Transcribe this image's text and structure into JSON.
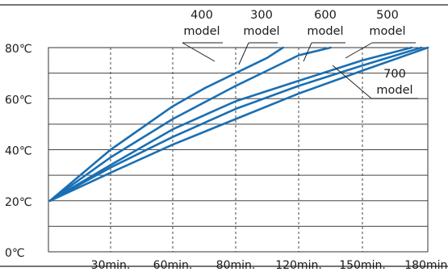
{
  "chart_data": {
    "type": "line",
    "x_tick_labels": [
      "30min.",
      "60min.",
      "80min.",
      "120min.",
      "150min.",
      "180min."
    ],
    "y_tick_labels": [
      "0℃",
      "20℃",
      "40℃",
      "60℃",
      "80℃"
    ],
    "ylim": [
      0,
      80
    ],
    "grid": true,
    "series": [
      {
        "name": "400 model",
        "label_lines": [
          "400",
          "model"
        ],
        "color": "#1a6fb3",
        "x": [
          0,
          1,
          2,
          2.5,
          3,
          3.5,
          3.75
        ],
        "y": [
          20,
          40,
          57,
          64,
          70,
          76,
          80
        ]
      },
      {
        "name": "300 model",
        "label_lines": [
          "300",
          "model"
        ],
        "color": "#1a6fb3",
        "x": [
          0,
          1,
          2,
          3,
          3.5,
          4,
          4.5
        ],
        "y": [
          20,
          37,
          52,
          65,
          71,
          77,
          80
        ]
      },
      {
        "name": "600 model",
        "label_lines": [
          "600",
          "model"
        ],
        "color": "#1a6fb3",
        "x": [
          0,
          1,
          2,
          3,
          4,
          5,
          5.75
        ],
        "y": [
          20,
          34,
          48,
          59,
          67,
          75,
          80
        ]
      },
      {
        "name": "500 model",
        "label_lines": [
          "500",
          "model"
        ],
        "color": "#1a6fb3",
        "x": [
          0,
          1,
          2,
          3,
          4,
          5,
          5.9
        ],
        "y": [
          20,
          33,
          45,
          56,
          65,
          73,
          80
        ]
      },
      {
        "name": "700 model",
        "label_lines": [
          "700",
          "model"
        ],
        "color": "#1a6fb3",
        "x": [
          0,
          1,
          2,
          3,
          4,
          5,
          6
        ],
        "y": [
          20,
          31,
          42,
          52,
          62,
          71,
          80
        ]
      }
    ]
  }
}
